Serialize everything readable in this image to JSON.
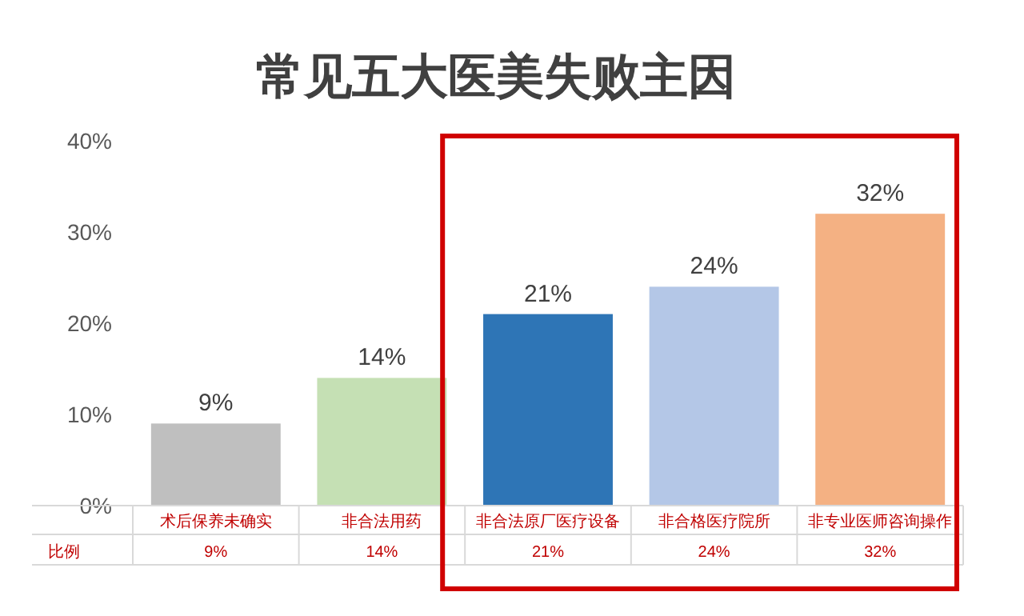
{
  "chart_data": {
    "type": "bar",
    "title": "常见五大医美失败主因",
    "categories": [
      "术后保养未确实",
      "非合法用药",
      "非合法原厂医疗设备",
      "非合格医疗院所",
      "非专业医师咨询操作"
    ],
    "values": [
      9,
      14,
      21,
      24,
      32
    ],
    "colors": [
      "#bfbfbf",
      "#c5e0b4",
      "#2e75b6",
      "#b4c7e7",
      "#f4b183"
    ],
    "value_labels": [
      "9%",
      "14%",
      "21%",
      "24%",
      "32%"
    ],
    "ylim": [
      0,
      40
    ],
    "yticks": [
      {
        "value": 0,
        "label": "0%"
      },
      {
        "value": 10,
        "label": "10%"
      },
      {
        "value": 20,
        "label": "20%"
      },
      {
        "value": 30,
        "label": "30%"
      },
      {
        "value": 40,
        "label": "40%"
      }
    ],
    "annotations": [
      "比例"
    ]
  }
}
